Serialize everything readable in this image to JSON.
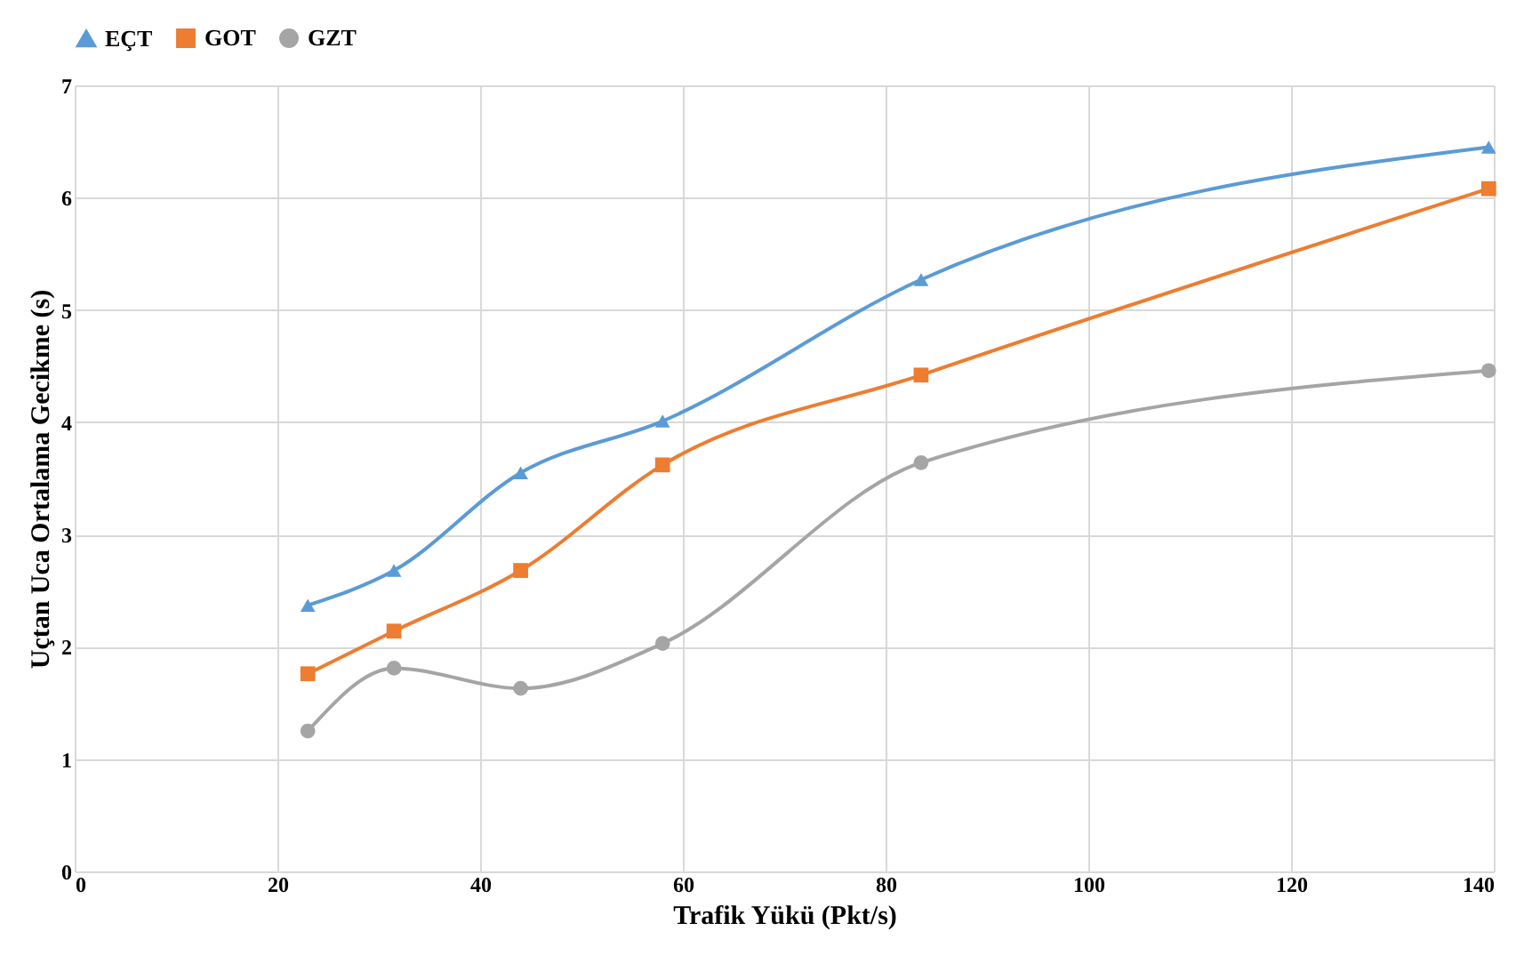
{
  "chart_data": {
    "type": "line",
    "xlabel": "Trafik Yükü (Pkt/s)",
    "ylabel": "Uçtan Uca Ortalama Gecikme (s)",
    "x": [
      23,
      31.5,
      44,
      58,
      83.5,
      139.5
    ],
    "series": [
      {
        "name": "EÇT",
        "color": "#5b9bd5",
        "marker": "triangle",
        "values": [
          2.37,
          2.68,
          3.55,
          4.01,
          5.27,
          6.45
        ]
      },
      {
        "name": "GOT",
        "color": "#ed7d31",
        "marker": "square",
        "values": [
          1.76,
          2.14,
          2.68,
          3.62,
          4.42,
          6.08
        ]
      },
      {
        "name": "GZT",
        "color": "#a5a5a5",
        "marker": "circle",
        "values": [
          1.25,
          1.81,
          1.63,
          2.03,
          3.64,
          4.46
        ]
      }
    ],
    "xlim": [
      0,
      140
    ],
    "xticks": [
      0,
      20,
      40,
      60,
      80,
      100,
      120,
      140
    ],
    "ylim": [
      0,
      7
    ],
    "yticks": [
      0,
      1,
      2,
      3,
      4,
      5,
      6,
      7
    ],
    "grid": true,
    "legend": "top",
    "line_style": "solid"
  }
}
